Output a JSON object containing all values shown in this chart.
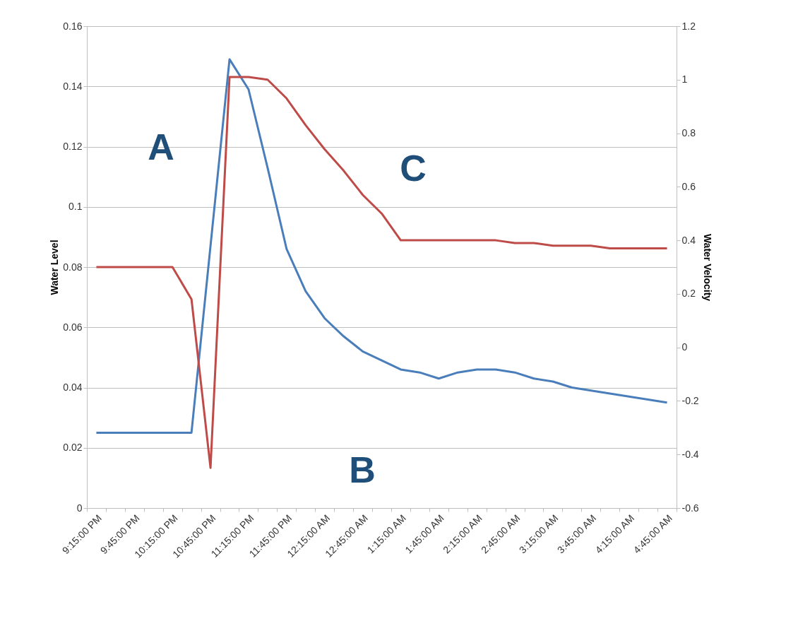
{
  "chart_data": {
    "type": "line",
    "categories": [
      "9:15:00 PM",
      null,
      "9:45:00 PM",
      null,
      "10:15:00 PM",
      null,
      "10:45:00 PM",
      null,
      "11:15:00 PM",
      null,
      "11:45:00 PM",
      null,
      "12:15:00 AM",
      null,
      "12:45:00 AM",
      null,
      "1:15:00 AM",
      null,
      "1:45:00 AM",
      null,
      "2:15:00 AM",
      null,
      "2:45:00 AM",
      null,
      "3:15:00 AM",
      null,
      "3:45:00 AM",
      null,
      "4:15:00 AM",
      null,
      "4:45:00 AM"
    ],
    "ylabel": "Water Level",
    "y2label": "Water Velocity",
    "ylim": [
      0,
      0.16
    ],
    "yticks": [
      0,
      0.02,
      0.04,
      0.06,
      0.08,
      0.1,
      0.12,
      0.14,
      0.16
    ],
    "y2lim": [
      -0.6,
      1.2
    ],
    "y2ticks": [
      -0.6,
      -0.4,
      -0.2,
      0,
      0.2,
      0.4,
      0.6,
      0.8,
      1,
      1.2
    ],
    "grid": "y",
    "marker": "none",
    "line_style": "solid",
    "annotations": [
      "A",
      "B",
      "C"
    ],
    "series": [
      {
        "color": "#4a7ebb",
        "values": [
          0.025,
          0.025,
          0.025,
          0.025,
          0.025,
          0.025,
          0.087,
          0.149,
          0.139,
          0.113,
          0.086,
          0.072,
          0.063,
          0.057,
          0.052,
          0.049,
          0.046,
          0.045,
          0.043,
          0.045,
          0.046,
          0.046,
          0.045,
          0.043,
          0.042,
          0.04,
          0.039,
          0.038,
          0.037,
          0.036,
          0.035
        ]
      },
      {
        "color": "#be4b48",
        "axis": "y2",
        "values": [
          0.3,
          0.3,
          0.3,
          0.3,
          0.3,
          0.18,
          -0.45,
          1.01,
          1.01,
          1.0,
          0.93,
          0.83,
          0.74,
          0.66,
          0.57,
          0.5,
          0.4,
          0.4,
          0.4,
          0.4,
          0.4,
          0.4,
          0.39,
          0.39,
          0.38,
          0.38,
          0.38,
          0.37,
          0.37,
          0.37,
          0.37
        ]
      }
    ]
  }
}
